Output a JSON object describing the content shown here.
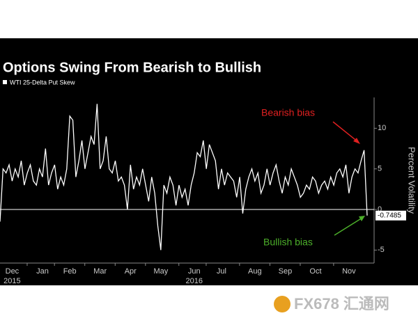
{
  "chart_data": {
    "type": "line",
    "title": "Options Swing From Bearish to Bullish",
    "y_label": "Percent Volatility",
    "categories": [
      null,
      null,
      null,
      null,
      "Dec",
      null,
      null,
      null,
      null,
      null,
      null,
      null,
      null,
      null,
      "Jan",
      null,
      null,
      null,
      null,
      null,
      null,
      null,
      null,
      "Feb",
      null,
      null,
      null,
      null,
      null,
      null,
      null,
      null,
      null,
      "Mar",
      null,
      null,
      null,
      null,
      null,
      null,
      null,
      null,
      null,
      "Apr",
      null,
      null,
      null,
      null,
      null,
      null,
      null,
      null,
      null,
      "May",
      null,
      null,
      null,
      null,
      null,
      null,
      null,
      null,
      null,
      null,
      "Jun",
      null,
      null,
      null,
      null,
      null,
      null,
      null,
      null,
      "Jul",
      null,
      null,
      null,
      null,
      null,
      null,
      null,
      null,
      null,
      null,
      "Aug",
      null,
      null,
      null,
      null,
      null,
      null,
      null,
      null,
      null,
      "Sep",
      null,
      null,
      null,
      null,
      null,
      null,
      null,
      null,
      null,
      "Oct",
      null,
      null,
      null,
      null,
      null,
      null,
      null,
      null,
      null,
      null,
      "Nov",
      null,
      null,
      null,
      null,
      null,
      null
    ],
    "years": [
      null,
      null,
      null,
      null,
      "2015",
      null,
      null,
      null,
      null,
      null,
      null,
      null,
      null,
      null,
      null,
      null,
      null,
      null,
      null,
      null,
      null,
      null,
      null,
      null,
      null,
      null,
      null,
      null,
      null,
      null,
      null,
      null,
      null,
      null,
      null,
      null,
      null,
      null,
      null,
      null,
      null,
      null,
      null,
      null,
      null,
      null,
      null,
      null,
      null,
      null,
      null,
      null,
      null,
      null,
      null,
      null,
      null,
      null,
      null,
      null,
      null,
      null,
      null,
      null,
      "2016",
      null,
      null,
      null,
      null,
      null,
      null,
      null,
      null,
      null,
      null,
      null,
      null,
      null,
      null,
      null,
      null,
      null,
      null,
      null,
      null,
      null,
      null,
      null,
      null,
      null,
      null,
      null,
      null,
      null,
      null,
      null,
      null,
      null,
      null,
      null,
      null,
      null,
      null,
      null,
      null,
      null,
      null,
      null,
      null,
      null,
      null,
      null,
      null,
      null,
      null,
      null,
      null,
      null,
      null,
      null,
      null,
      null
    ],
    "series": [
      {
        "name": "WTI 25-Delta Put Skew",
        "color": "#ffffff",
        "values": [
          -1.5,
          5,
          4.5,
          5.5,
          3.5,
          5,
          4,
          6,
          3,
          4.5,
          5.5,
          3.5,
          3,
          5,
          4,
          7.5,
          3,
          4.5,
          5.5,
          2.5,
          4,
          3,
          5,
          11.5,
          11,
          4,
          6,
          8.5,
          5,
          7,
          9,
          8,
          13,
          5,
          6,
          9,
          5,
          4.5,
          6,
          3.5,
          4,
          3,
          0,
          5.5,
          2.5,
          4,
          3,
          5,
          3,
          1,
          4,
          2,
          -2,
          -5,
          3,
          2,
          4,
          3,
          0.5,
          3,
          1.5,
          2.5,
          0.5,
          3,
          4.5,
          7,
          6.5,
          8.5,
          5,
          8,
          7,
          6,
          2.5,
          5,
          3,
          4.5,
          4,
          3.5,
          1.5,
          4,
          -0.5,
          2.5,
          4,
          5,
          3.5,
          4.5,
          2,
          3,
          5,
          3,
          4.5,
          5.5,
          3.5,
          2,
          4,
          3,
          5,
          4,
          3,
          1.5,
          2,
          3,
          2.5,
          4,
          3.5,
          2,
          3,
          3.5,
          2.5,
          4,
          3,
          4.5,
          5,
          4,
          5.5,
          2,
          4,
          5,
          4.5,
          6,
          7.3,
          -0.7485
        ]
      }
    ],
    "ylim": [
      -6.6,
      13.8
    ],
    "yticks": [
      -5,
      0,
      5,
      10
    ],
    "zero_line": true,
    "annotations": [
      {
        "text": "Bearish bias",
        "color": "#e02020"
      },
      {
        "text": "Bullish bias",
        "color": "#4caf2a"
      }
    ],
    "watermark": "FX678 汇通网"
  }
}
